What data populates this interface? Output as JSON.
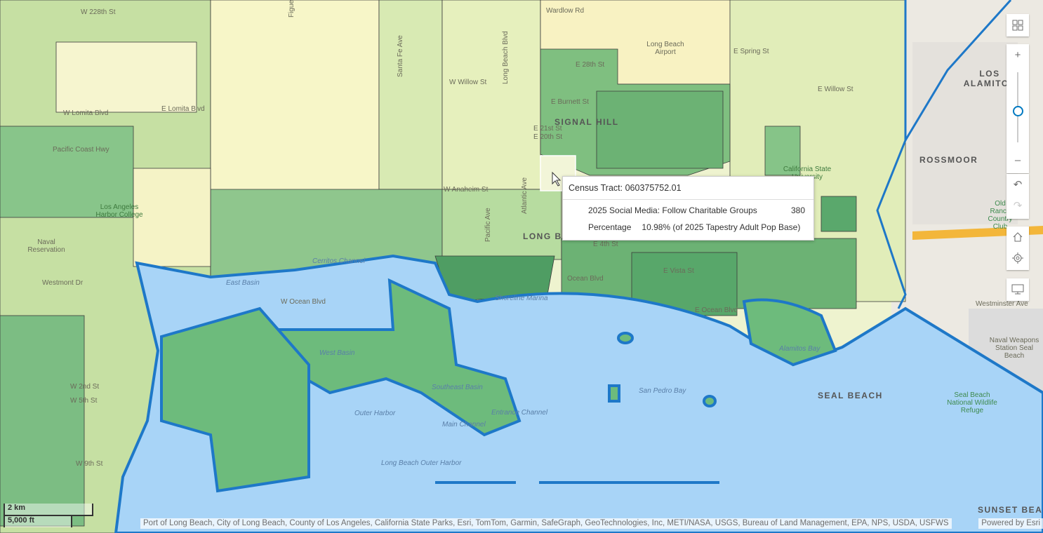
{
  "popup": {
    "title": "Census Tract: 060375752.01",
    "rows": [
      {
        "label": "2025 Social Media: Follow Charitable Groups",
        "value": "380"
      },
      {
        "label": "Percentage",
        "value": "10.98% (of 2025 Tapestry Adult Pop Base)"
      }
    ]
  },
  "controls": {
    "basemap_gallery": "basemap-gallery-icon",
    "zoom_in": "+",
    "zoom_out": "–",
    "zoom_level_fraction": 0.45,
    "undo": "↶",
    "redo": "↷",
    "home": "home-icon",
    "locate": "locate-icon",
    "fullscreen": "monitor-icon"
  },
  "scalebar": {
    "metric": "2 km",
    "imperial": "5,000 ft"
  },
  "attribution": "Port of Long Beach, City of Long Beach, County of Los Angeles, California State Parks, Esri, TomTom, Garmin, SafeGraph, GeoTechnologies, Inc, METI/NASA, USGS, Bureau of Land Management, EPA, NPS, USDA, USFWS",
  "powered_by": "Powered by Esri",
  "colors": {
    "water": "#a8d4f7",
    "shoreline": "#1e78c8",
    "tract_dark": "#5aa86c",
    "tract_light": "#e9f2c4",
    "accent": "#0079c1"
  },
  "labels": {
    "cities": [
      "SIGNAL HILL",
      "LONG BEACH",
      "LOS ALAMITOS",
      "ROSSMOOR",
      "SEAL BEACH",
      "SUNSET BEACH"
    ],
    "water": [
      "West Basin",
      "Outer Harbor",
      "Southeast Basin",
      "Main Channel",
      "Long Beach Outer Harbor",
      "San Pedro Bay",
      "Entrance Channel",
      "Alamitos Bay",
      "Cerritos Channel",
      "Shoreline Marina",
      "East Basin"
    ],
    "streets": [
      "W 228th St",
      "Wardlow Rd",
      "E Spring St",
      "E 28th St",
      "W Willow St",
      "E Willow St",
      "E Burnett St",
      "E Lomita Blvd",
      "W Lomita Blvd",
      "Pacific Coast Hwy",
      "E 21st St",
      "E 20th St",
      "W Anaheim St",
      "E Ocean Blvd",
      "Ocean Blvd",
      "W Ocean Blvd",
      "Westminster Ave",
      "E 4th St",
      "E Vista St",
      "Westmont Dr",
      "W 2nd St",
      "W 5th St",
      "W 9th St",
      "Santa Fe Ave",
      "Long Beach Blvd",
      "Atlantic Ave",
      "Pacific Ave",
      "Figueroa St"
    ],
    "places": [
      "Naval Reservation",
      "Los Angeles Harbor College",
      "Long Beach Airport",
      "California State University",
      "Naval Weapons Station Seal Beach",
      "Seal Beach National Wildlife Refuge",
      "Old Ranch Country Club"
    ]
  }
}
